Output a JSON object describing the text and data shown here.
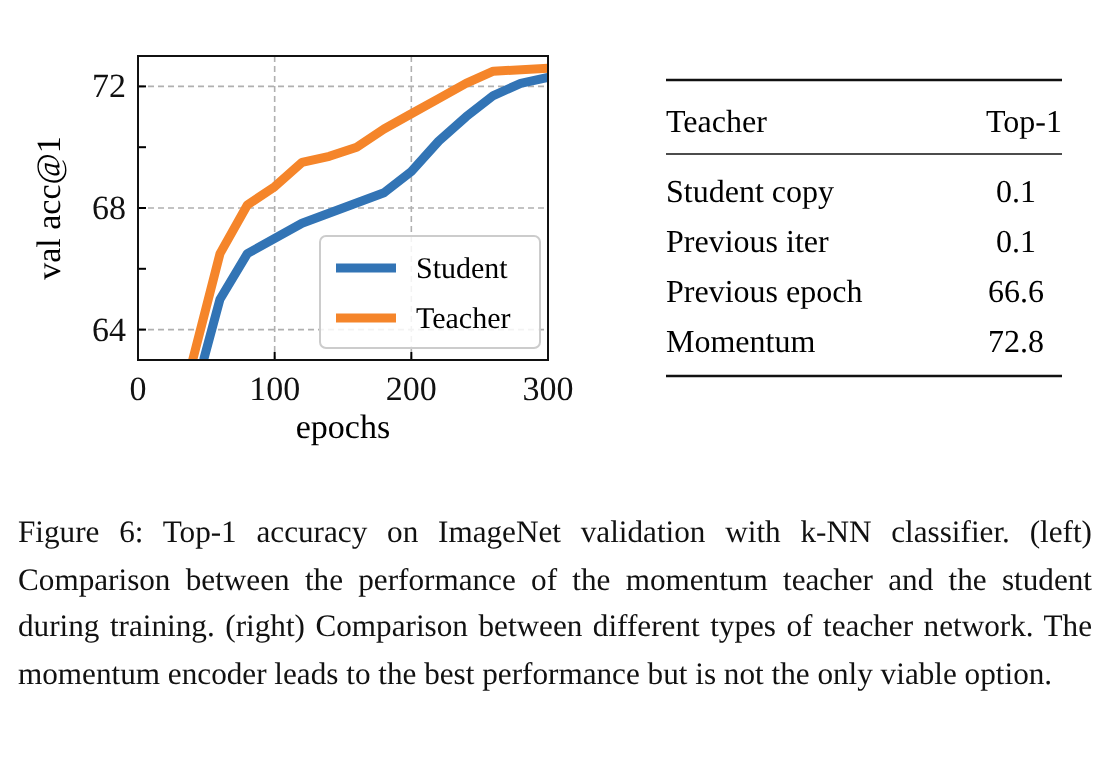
{
  "chart_data": [
    {
      "type": "line",
      "xlabel": "epochs",
      "ylabel": "val acc@1",
      "xlim": [
        0,
        300
      ],
      "ylim": [
        63,
        73
      ],
      "xticks": [
        0,
        100,
        200,
        300
      ],
      "yticks": [
        64,
        {
          "value": 66,
          "label": null
        },
        68,
        {
          "value": 70,
          "label": null
        },
        72
      ],
      "grid": true,
      "legend": "bottom right",
      "line_style": "solid",
      "marker": "none",
      "series": [
        {
          "name": "Student",
          "color": "#3274b5",
          "x": [
            48,
            60,
            80,
            120,
            180,
            200,
            220,
            240,
            260,
            280,
            300
          ],
          "values": [
            63,
            65.0,
            66.5,
            67.5,
            68.5,
            69.2,
            70.2,
            71.0,
            71.7,
            72.1,
            72.3
          ]
        },
        {
          "name": "Teacher",
          "color": "#f5852a",
          "x": [
            40,
            60,
            80,
            100,
            120,
            140,
            160,
            180,
            200,
            220,
            240,
            260,
            300
          ],
          "values": [
            63,
            66.5,
            68.1,
            68.7,
            69.5,
            69.7,
            70.0,
            70.6,
            71.1,
            71.6,
            72.1,
            72.5,
            72.6
          ]
        }
      ],
      "annotations": [
        "Figure 6: Top-1 accuracy on ImageNet validation with k-NN classifier. (left) Comparison between the performance of the momentum teacher and the student during training. (right) Comparison between different types of teacher network. The momentum encoder leads to the best performance but is not the only viable option."
      ]
    },
    {
      "type": "other",
      "xlabel": "Teacher",
      "ylabel": "Top-1",
      "categories": [
        "Student copy",
        "Previous iter",
        "Previous epoch",
        "Momentum"
      ],
      "values": [
        0.1,
        0.1,
        66.6,
        72.8
      ],
      "data_labels": true
    }
  ]
}
